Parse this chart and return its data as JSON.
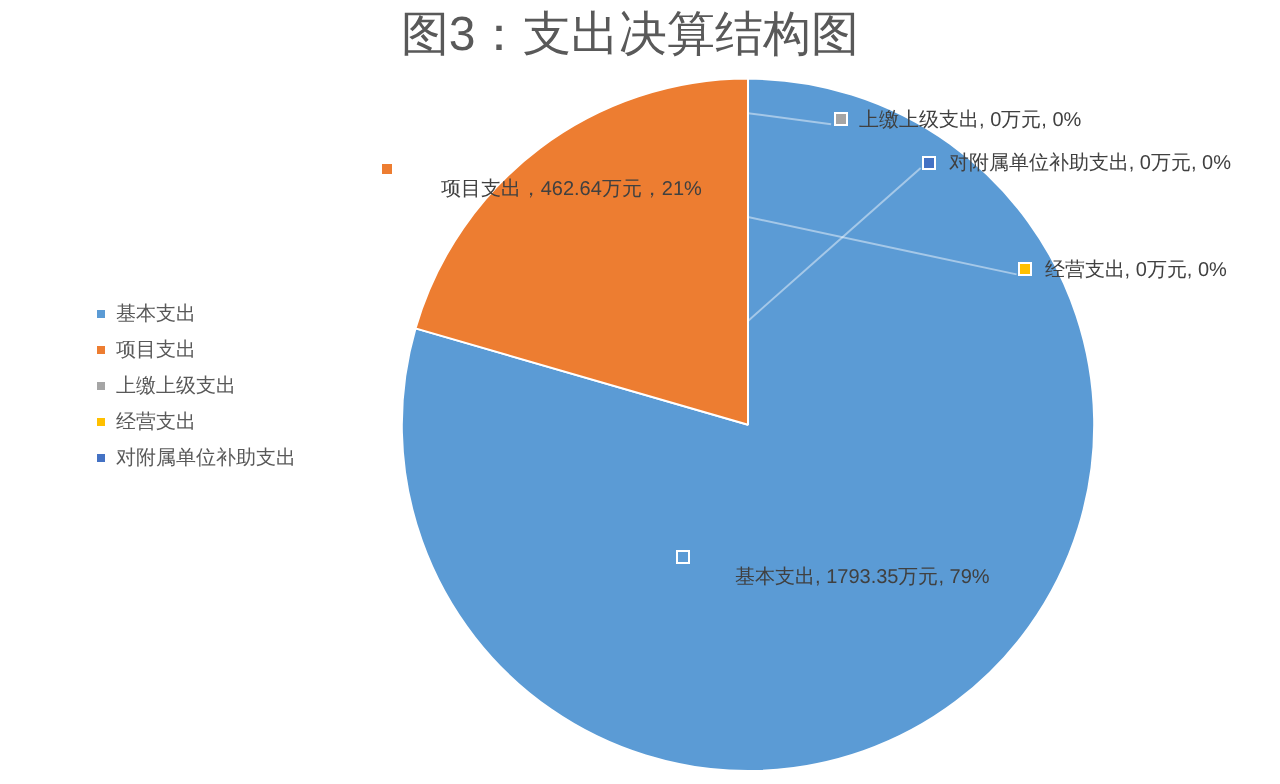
{
  "chart_data": {
    "type": "pie",
    "title": "图3：支出决算结构图",
    "categories": [
      "基本支出",
      "项目支出",
      "上缴上级支出",
      "经营支出",
      "对附属单位补助支出"
    ],
    "values": [
      1793.35,
      462.64,
      0,
      0,
      0
    ],
    "colors": [
      "#5b9bd5",
      "#ed7d31",
      "#a5a5a5",
      "#ffc000",
      "#4472c4"
    ],
    "value_labels": [
      "基本支出, 1793.35万元, 79%",
      "项目支出，462.64万元，21%",
      "上缴上级支出, 0万元, 0%",
      "经营支出, 0万元, 0%",
      "对附属单位补助支出, 0万元, 0%"
    ],
    "legend": "left"
  }
}
